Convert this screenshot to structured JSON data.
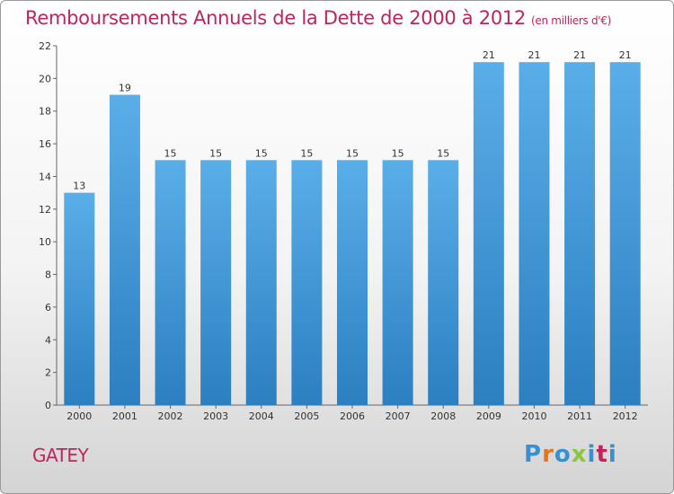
{
  "title": "Remboursements Annuels de la Dette de 2000 à 2012",
  "subtitle": "(en milliers d'€)",
  "commune": "GATEY",
  "logo": {
    "letters": [
      "P",
      "r",
      "o",
      "x",
      "i",
      "t",
      "i"
    ],
    "colors": [
      "#3a8fd0",
      "#e8741c",
      "#3a8fd0",
      "#8cc63f",
      "#3a8fd0",
      "#c0245c",
      "#3a8fd0"
    ]
  },
  "colors": {
    "bar_top": "#5aaee8",
    "bar_bottom": "#2c7fc0",
    "title": "#c0245c"
  },
  "chart_data": {
    "type": "bar",
    "title": "Remboursements Annuels de la Dette de 2000 à 2012",
    "subtitle": "(en milliers d'€)",
    "categories": [
      "2000",
      "2001",
      "2002",
      "2003",
      "2004",
      "2005",
      "2006",
      "2007",
      "2008",
      "2009",
      "2010",
      "2011",
      "2012"
    ],
    "values": [
      13,
      19,
      15,
      15,
      15,
      15,
      15,
      15,
      15,
      21,
      21,
      21,
      21
    ],
    "ylim": [
      0,
      22
    ],
    "yticks": [
      0,
      2,
      4,
      6,
      8,
      10,
      12,
      14,
      16,
      18,
      20,
      22
    ],
    "grid": false,
    "legend": "none"
  }
}
